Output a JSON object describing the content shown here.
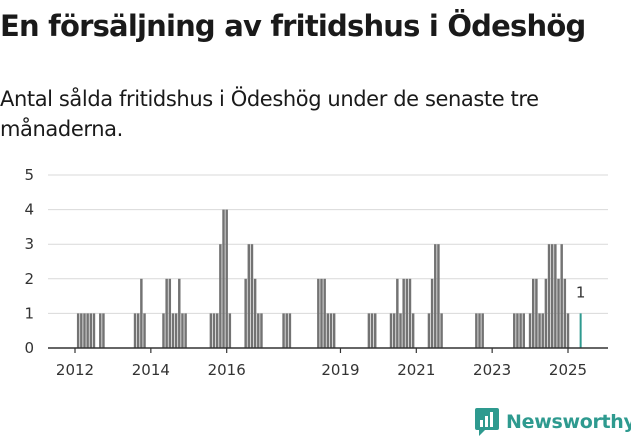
{
  "title": "En försäljning av fritidshus i Ödeshög",
  "subtitle": "Antal sålda fritidshus i Ödeshög under de senaste tre månaderna.",
  "logo_text": "Newsworthy",
  "colors": {
    "bar": "#737373",
    "highlight": "#2e9a8f",
    "grid": "#d9d9d9",
    "axis": "#333333"
  },
  "chart_data": {
    "type": "bar",
    "title": "",
    "xlabel": "",
    "ylabel": "",
    "ylim": [
      0,
      5
    ],
    "y_ticks": [
      "0",
      "1",
      "2",
      "3",
      "4",
      "5"
    ],
    "x_ticks": [
      {
        "label": "2012",
        "date": "2012-01"
      },
      {
        "label": "2014",
        "date": "2014-01"
      },
      {
        "label": "2016",
        "date": "2016-01"
      },
      {
        "label": "2019",
        "date": "2019-01"
      },
      {
        "label": "2021",
        "date": "2021-01"
      },
      {
        "label": "2023",
        "date": "2023-01"
      },
      {
        "label": "2025",
        "date": "2025-01"
      }
    ],
    "grid": true,
    "highlight_label": "1",
    "bars": [
      {
        "date": "2012-02",
        "value": 1
      },
      {
        "date": "2012-03",
        "value": 1
      },
      {
        "date": "2012-04",
        "value": 1
      },
      {
        "date": "2012-05",
        "value": 1
      },
      {
        "date": "2012-06",
        "value": 1
      },
      {
        "date": "2012-07",
        "value": 1
      },
      {
        "date": "2012-09",
        "value": 1
      },
      {
        "date": "2012-10",
        "value": 1
      },
      {
        "date": "2013-08",
        "value": 1
      },
      {
        "date": "2013-09",
        "value": 1
      },
      {
        "date": "2013-10",
        "value": 2
      },
      {
        "date": "2013-11",
        "value": 1
      },
      {
        "date": "2014-05",
        "value": 1
      },
      {
        "date": "2014-06",
        "value": 2
      },
      {
        "date": "2014-07",
        "value": 2
      },
      {
        "date": "2014-08",
        "value": 1
      },
      {
        "date": "2014-09",
        "value": 1
      },
      {
        "date": "2014-10",
        "value": 2
      },
      {
        "date": "2014-11",
        "value": 1
      },
      {
        "date": "2014-12",
        "value": 1
      },
      {
        "date": "2015-08",
        "value": 1
      },
      {
        "date": "2015-09",
        "value": 1
      },
      {
        "date": "2015-10",
        "value": 1
      },
      {
        "date": "2015-11",
        "value": 3
      },
      {
        "date": "2015-12",
        "value": 4
      },
      {
        "date": "2016-01",
        "value": 4
      },
      {
        "date": "2016-02",
        "value": 1
      },
      {
        "date": "2016-07",
        "value": 2
      },
      {
        "date": "2016-08",
        "value": 3
      },
      {
        "date": "2016-09",
        "value": 3
      },
      {
        "date": "2016-10",
        "value": 2
      },
      {
        "date": "2016-11",
        "value": 1
      },
      {
        "date": "2016-12",
        "value": 1
      },
      {
        "date": "2017-07",
        "value": 1
      },
      {
        "date": "2017-08",
        "value": 1
      },
      {
        "date": "2017-09",
        "value": 1
      },
      {
        "date": "2018-06",
        "value": 2
      },
      {
        "date": "2018-07",
        "value": 2
      },
      {
        "date": "2018-08",
        "value": 2
      },
      {
        "date": "2018-09",
        "value": 1
      },
      {
        "date": "2018-10",
        "value": 1
      },
      {
        "date": "2018-11",
        "value": 1
      },
      {
        "date": "2019-10",
        "value": 1
      },
      {
        "date": "2019-11",
        "value": 1
      },
      {
        "date": "2019-12",
        "value": 1
      },
      {
        "date": "2020-05",
        "value": 1
      },
      {
        "date": "2020-06",
        "value": 1
      },
      {
        "date": "2020-07",
        "value": 2
      },
      {
        "date": "2020-08",
        "value": 1
      },
      {
        "date": "2020-09",
        "value": 2
      },
      {
        "date": "2020-10",
        "value": 2
      },
      {
        "date": "2020-11",
        "value": 2
      },
      {
        "date": "2020-12",
        "value": 1
      },
      {
        "date": "2021-05",
        "value": 1
      },
      {
        "date": "2021-06",
        "value": 2
      },
      {
        "date": "2021-07",
        "value": 3
      },
      {
        "date": "2021-08",
        "value": 3
      },
      {
        "date": "2021-09",
        "value": 1
      },
      {
        "date": "2022-08",
        "value": 1
      },
      {
        "date": "2022-09",
        "value": 1
      },
      {
        "date": "2022-10",
        "value": 1
      },
      {
        "date": "2023-08",
        "value": 1
      },
      {
        "date": "2023-09",
        "value": 1
      },
      {
        "date": "2023-10",
        "value": 1
      },
      {
        "date": "2023-11",
        "value": 1
      },
      {
        "date": "2024-01",
        "value": 1
      },
      {
        "date": "2024-02",
        "value": 2
      },
      {
        "date": "2024-03",
        "value": 2
      },
      {
        "date": "2024-04",
        "value": 1
      },
      {
        "date": "2024-05",
        "value": 1
      },
      {
        "date": "2024-06",
        "value": 2
      },
      {
        "date": "2024-07",
        "value": 3
      },
      {
        "date": "2024-08",
        "value": 3
      },
      {
        "date": "2024-09",
        "value": 3
      },
      {
        "date": "2024-10",
        "value": 2
      },
      {
        "date": "2024-11",
        "value": 3
      },
      {
        "date": "2024-12",
        "value": 2
      },
      {
        "date": "2025-01",
        "value": 1
      },
      {
        "date": "2025-05",
        "value": 1,
        "highlight": true
      }
    ]
  }
}
